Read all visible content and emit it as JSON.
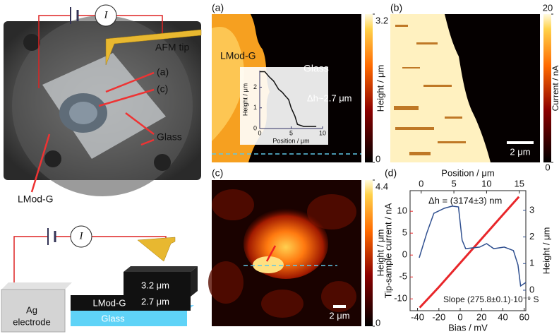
{
  "figure": {
    "photo": {
      "current_symbol": "I",
      "tip_label": "AFM tip",
      "mark_a": "(a)",
      "mark_c": "(c)",
      "glass_label": "Glass",
      "sample_label": "LMod-G"
    },
    "schematic": {
      "current_symbol": "I",
      "top_thickness": "3.2 μm",
      "layer_label": "LMod-G",
      "layer_thickness": "2.7 μm",
      "electrode_line1": "Ag",
      "electrode_line2": "electrode",
      "substrate_label": "Glass"
    },
    "panel_a": {
      "label": "(a)",
      "region_left": "LMod-G",
      "region_right": "Glass",
      "colorbar": {
        "max": 3.2,
        "min": 0,
        "label": "Height / μm"
      },
      "inset": {
        "xlabel": "Position / μm",
        "ylabel": "Height / μm",
        "annotation": "Δh~2.7 μm",
        "xlim": [
          0,
          10
        ],
        "ylim": [
          0,
          2.8
        ],
        "xticks": [
          0,
          5,
          10
        ],
        "yticks": [
          0,
          1,
          2
        ],
        "x": [
          0,
          0.8,
          1.5,
          2.2,
          3,
          3.6,
          4,
          4.6,
          5,
          5.6,
          6,
          7,
          8,
          9
        ],
        "values": [
          2.75,
          2.75,
          2.5,
          2.3,
          1.9,
          1.75,
          1.6,
          1.4,
          1.0,
          0.6,
          0.2,
          0.1,
          0.1,
          0.1
        ]
      }
    },
    "panel_b": {
      "label": "(b)",
      "colorbar": {
        "max": 20,
        "min": 0,
        "label": "Current / nA"
      },
      "scale_bar": "2 μm"
    },
    "panel_c": {
      "label": "(c)",
      "colorbar": {
        "max": 4.4,
        "min": 0,
        "label": "Height / μm"
      },
      "scale_bar": "2 μm"
    }
  },
  "chart_data": {
    "type": "line",
    "label": "(d)",
    "xlabel": "Bias / mV",
    "ylabel": "Tip-sample current / nA",
    "x2label": "Position / μm",
    "y2label": "Height / μm",
    "xlim": [
      -47,
      61.5
    ],
    "xticks": [
      -40,
      -20,
      0,
      20,
      40,
      60
    ],
    "x2lim": [
      -1.7,
      16
    ],
    "x2ticks": [
      0,
      5,
      10,
      15
    ],
    "ylim": [
      -12.7,
      14.7
    ],
    "yticks": [
      -10,
      -5,
      0,
      5,
      10
    ],
    "y2lim": [
      -0.77,
      3.74
    ],
    "y2ticks": [
      0,
      1,
      2,
      3
    ],
    "annotations": [
      "Δh = (3174±3) nm",
      "Slope (275.8±0.1)·10⁻⁹ S"
    ],
    "series": [
      {
        "name": "Tip-sample current",
        "color": "#e8262a",
        "x": [
          -38,
          -20,
          0,
          20,
          40,
          55
        ],
        "values": [
          -12,
          -7.3,
          -1.8,
          3.7,
          9.2,
          13.3
        ]
      },
      {
        "name": "Height",
        "color": "#2f4f8f",
        "axis": "y2",
        "x_axis": "x2",
        "x": [
          -0.3,
          0.86,
          1.94,
          3.56,
          4.75,
          5.7,
          6.26,
          6.8,
          8.95,
          10,
          11.1,
          12.7,
          14.1,
          14.8,
          15.2,
          16
        ],
        "values": [
          1.22,
          2.15,
          2.89,
          3.08,
          3.16,
          3.13,
          1.88,
          1.56,
          1.62,
          1.75,
          1.56,
          1.62,
          1.49,
          0.95,
          0.16,
          0.29
        ]
      }
    ]
  }
}
